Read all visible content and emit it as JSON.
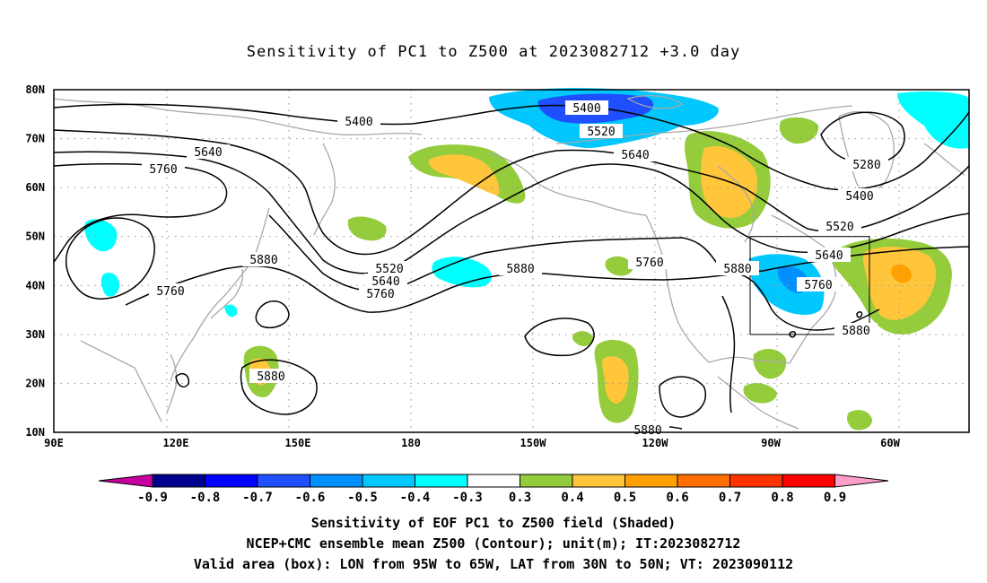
{
  "title": "Sensitivity of PC1 to Z500 at 2023082712 +3.0 day",
  "map": {
    "lon_labels": [
      "90E",
      "120E",
      "150E",
      "180",
      "150W",
      "120W",
      "90W",
      "60W"
    ],
    "lat_labels": [
      "80N",
      "70N",
      "60N",
      "50N",
      "40N",
      "30N",
      "20N",
      "10N"
    ],
    "contour_labels": [
      "5400",
      "5400",
      "5520",
      "5640",
      "5640",
      "5760",
      "5280",
      "5400",
      "5520",
      "5640",
      "5760",
      "5880",
      "5880",
      "5520",
      "5640",
      "5760",
      "5880",
      "5760",
      "5880",
      "5760",
      "5880",
      "5880"
    ],
    "valid_box": {
      "lon_from": "95W",
      "lon_to": "65W",
      "lat_from": "30N",
      "lat_to": "50N"
    }
  },
  "colorbar": {
    "labels": [
      "-0.9",
      "-0.8",
      "-0.7",
      "-0.6",
      "-0.5",
      "-0.4",
      "-0.3",
      "0.3",
      "0.4",
      "0.5",
      "0.6",
      "0.7",
      "0.8",
      "0.9"
    ],
    "colors": [
      "#00008f",
      "#0000ff",
      "#1f4fff",
      "#0090ff",
      "#00c8ff",
      "#00ffff",
      "#ffffff",
      "#94cc3c",
      "#ffc63c",
      "#ffa000",
      "#ff6e00",
      "#ff3300",
      "#ff0000"
    ],
    "left_arrow_color": "#c800a0",
    "right_arrow_color": "#ff9ec8"
  },
  "captions": {
    "line1": "Sensitivity of EOF PC1 to Z500 field (Shaded)",
    "line2": "NCEP+CMC ensemble mean Z500 (Contour); unit(m); IT:2023082712",
    "line3": "Valid area (box): LON from 95W to 65W, LAT from 30N to 50N; VT: 2023090112"
  }
}
